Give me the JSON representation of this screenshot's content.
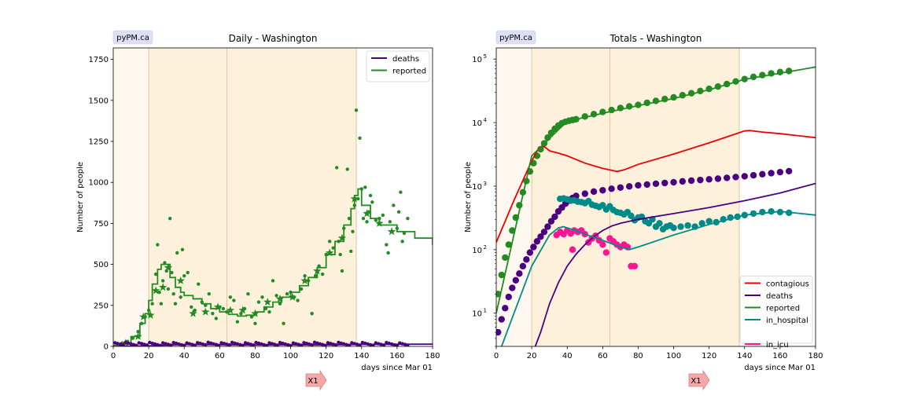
{
  "chart_data": [
    {
      "type": "line",
      "title": "Daily - Washington",
      "xlabel": "days since Mar 01",
      "ylabel": "Number of people",
      "xlim": [
        0,
        180
      ],
      "ylim": [
        0,
        1820
      ],
      "xticks": [
        0,
        20,
        40,
        60,
        80,
        100,
        120,
        140,
        160,
        180
      ],
      "yticks": [
        0,
        250,
        500,
        750,
        1000,
        1250,
        1500,
        1750
      ],
      "watermark": "pyPM.ca",
      "marker_label": "X1",
      "legend_position": "upper right",
      "intervals": [
        {
          "x0": 0,
          "x1": 20,
          "color": "#fdf3e7"
        },
        {
          "x0": 20,
          "x1": 64,
          "color": "#fdf0da"
        },
        {
          "x0": 64,
          "x1": 137,
          "color": "#fdf0da"
        }
      ],
      "series": [
        {
          "name": "deaths",
          "color": "#4b0082",
          "x": [
            0,
            20,
            40,
            60,
            80,
            100,
            120,
            140,
            160,
            180
          ],
          "values": [
            0,
            3,
            12,
            10,
            9,
            10,
            9,
            12,
            13,
            14
          ]
        },
        {
          "name": "reported",
          "color": "#228b22",
          "x": [
            0,
            5,
            10,
            15,
            18,
            20,
            22,
            25,
            27,
            30,
            32,
            35,
            38,
            40,
            45,
            50,
            55,
            60,
            65,
            70,
            75,
            80,
            85,
            90,
            95,
            100,
            105,
            110,
            115,
            120,
            125,
            130,
            134,
            136,
            138,
            140,
            145,
            150,
            160,
            170,
            180
          ],
          "values": [
            5,
            20,
            60,
            140,
            200,
            280,
            380,
            470,
            500,
            500,
            420,
            360,
            330,
            310,
            290,
            260,
            230,
            210,
            195,
            185,
            190,
            210,
            240,
            270,
            300,
            330,
            370,
            420,
            480,
            560,
            640,
            740,
            840,
            920,
            960,
            860,
            780,
            740,
            700,
            660,
            620
          ]
        }
      ],
      "scatter_points": {
        "color": "#228b22",
        "x": [
          2,
          5,
          8,
          11,
          14,
          16,
          18,
          20,
          22,
          24,
          25,
          26,
          27,
          28,
          29,
          30,
          31,
          32,
          33,
          34,
          35,
          36,
          38,
          39,
          40,
          42,
          44,
          46,
          48,
          50,
          52,
          54,
          56,
          58,
          60,
          62,
          64,
          66,
          68,
          70,
          72,
          74,
          76,
          78,
          80,
          82,
          84,
          86,
          88,
          90,
          92,
          94,
          96,
          98,
          100,
          102,
          104,
          106,
          108,
          110,
          112,
          114,
          116,
          118,
          120,
          122,
          124,
          126,
          127,
          128,
          129,
          130,
          132,
          133,
          134,
          135,
          136,
          137,
          138,
          139,
          140,
          141,
          142,
          143,
          144,
          145,
          146,
          148,
          150,
          152,
          154,
          155,
          156,
          158,
          160,
          161,
          162,
          163,
          164,
          166
        ],
        "values": [
          10,
          20,
          30,
          50,
          90,
          140,
          180,
          220,
          260,
          440,
          620,
          330,
          260,
          400,
          510,
          460,
          350,
          780,
          450,
          320,
          260,
          570,
          300,
          590,
          430,
          450,
          240,
          220,
          380,
          270,
          250,
          320,
          200,
          170,
          240,
          230,
          210,
          300,
          280,
          150,
          200,
          230,
          320,
          180,
          140,
          270,
          300,
          230,
          210,
          400,
          310,
          260,
          140,
          320,
          330,
          300,
          280,
          350,
          430,
          400,
          200,
          430,
          490,
          440,
          560,
          640,
          600,
          1090,
          640,
          560,
          460,
          720,
          1080,
          780,
          580,
          700,
          860,
          1440,
          900,
          1270,
          960,
          780,
          970,
          760,
          820,
          920,
          880,
          770,
          780,
          800,
          620,
          570,
          760,
          860,
          720,
          820,
          940,
          640,
          690,
          780
        ]
      },
      "star_points": {
        "color": "#228b22",
        "x": [
          7,
          14,
          17,
          21,
          24,
          28,
          31,
          38,
          45,
          52,
          59,
          66,
          73,
          80,
          87,
          94,
          101,
          108,
          115,
          122,
          129,
          136,
          143,
          150,
          157
        ],
        "values": [
          20,
          60,
          180,
          190,
          340,
          360,
          480,
          400,
          200,
          210,
          240,
          220,
          220,
          200,
          270,
          290,
          300,
          400,
          460,
          570,
          660,
          900,
          810,
          750,
          700
        ]
      }
    },
    {
      "type": "line",
      "title": "Totals - Washington",
      "xlabel": "days since Mar 01",
      "ylabel": "Number of people",
      "xlim": [
        0,
        180
      ],
      "yscale": "log",
      "ylim": [
        3,
        150000
      ],
      "xticks": [
        0,
        20,
        40,
        60,
        80,
        100,
        120,
        140,
        160,
        180
      ],
      "yticks": [
        10,
        100,
        1000,
        10000,
        100000
      ],
      "ytick_labels": [
        {
          "base": "10",
          "exp": "1"
        },
        {
          "base": "10",
          "exp": "2"
        },
        {
          "base": "10",
          "exp": "3"
        },
        {
          "base": "10",
          "exp": "4"
        },
        {
          "base": "10",
          "exp": "5"
        }
      ],
      "watermark": "pyPM.ca",
      "marker_label": "X1",
      "legend_position": "lower right",
      "intervals": [
        {
          "x0": 0,
          "x1": 20,
          "color": "#fdf3e7"
        },
        {
          "x0": 20,
          "x1": 64,
          "color": "#fdf0da"
        },
        {
          "x0": 64,
          "x1": 137,
          "color": "#fdf0da"
        }
      ],
      "series": [
        {
          "name": "contagious",
          "color": "#ee0000",
          "x": [
            0,
            10,
            20,
            24,
            26,
            28,
            30,
            35,
            40,
            50,
            60,
            68,
            72,
            80,
            100,
            120,
            140,
            143,
            150,
            160,
            180
          ],
          "values": [
            130,
            600,
            2500,
            4000,
            4300,
            4000,
            3600,
            3300,
            3000,
            2300,
            1900,
            1700,
            1800,
            2200,
            3200,
            4800,
            7400,
            7500,
            7100,
            6700,
            5800
          ]
        },
        {
          "name": "deaths",
          "color": "#4b0082",
          "x": [
            22,
            25,
            30,
            35,
            40,
            45,
            50,
            55,
            60,
            65,
            70,
            80,
            100,
            120,
            140,
            160,
            180
          ],
          "values": [
            3,
            5,
            14,
            30,
            55,
            85,
            120,
            160,
            200,
            235,
            260,
            300,
            370,
            460,
            590,
            780,
            1100
          ]
        },
        {
          "name": "reported",
          "color": "#228b22",
          "x": [
            0,
            20,
            40,
            60,
            80,
            100,
            120,
            140,
            160,
            180
          ],
          "values": [
            10,
            3000,
            10500,
            14000,
            18500,
            24000,
            33000,
            48000,
            60000,
            75000
          ]
        },
        {
          "name": "in_hospital",
          "color": "#008b8b",
          "x": [
            3,
            10,
            20,
            30,
            35,
            38,
            40,
            45,
            50,
            60,
            70,
            75,
            80,
            100,
            120,
            140,
            160,
            180
          ],
          "values": [
            3,
            10,
            55,
            170,
            220,
            230,
            220,
            200,
            175,
            140,
            110,
            100,
            110,
            170,
            250,
            350,
            400,
            350
          ]
        }
      ],
      "scatter_series": [
        {
          "name": "reported",
          "color": "#228b22",
          "x": [
            1,
            3,
            5,
            7,
            9,
            11,
            13,
            15,
            17,
            19,
            21,
            23,
            25,
            27,
            29,
            31,
            33,
            35,
            37,
            39,
            41,
            43,
            45,
            50,
            55,
            60,
            65,
            70,
            75,
            80,
            85,
            90,
            95,
            100,
            105,
            110,
            115,
            120,
            125,
            130,
            135,
            140,
            145,
            150,
            155,
            160,
            165
          ],
          "values": [
            20,
            40,
            75,
            120,
            200,
            320,
            500,
            800,
            1200,
            1700,
            2300,
            3000,
            3800,
            4700,
            5800,
            6900,
            8000,
            9000,
            9800,
            10300,
            10700,
            11000,
            11300,
            12500,
            13600,
            14700,
            15800,
            17000,
            18000,
            19000,
            20500,
            22000,
            23500,
            25000,
            27000,
            29000,
            31500,
            34000,
            37000,
            40500,
            44500,
            48500,
            52500,
            56000,
            59500,
            62500,
            65000
          ]
        },
        {
          "name": "deaths",
          "color": "#4b0082",
          "x": [
            1,
            3,
            5,
            7,
            9,
            11,
            13,
            15,
            17,
            19,
            21,
            23,
            25,
            27,
            29,
            31,
            33,
            35,
            37,
            39,
            41,
            43,
            45,
            50,
            55,
            60,
            65,
            70,
            75,
            80,
            85,
            90,
            95,
            100,
            105,
            110,
            115,
            120,
            125,
            130,
            135,
            140,
            145,
            150,
            155,
            160,
            165
          ],
          "values": [
            5,
            8,
            12,
            18,
            25,
            33,
            42,
            55,
            70,
            90,
            110,
            135,
            160,
            190,
            230,
            280,
            330,
            400,
            460,
            530,
            590,
            650,
            700,
            760,
            820,
            860,
            910,
            950,
            990,
            1030,
            1060,
            1090,
            1120,
            1150,
            1190,
            1220,
            1250,
            1280,
            1310,
            1350,
            1390,
            1430,
            1480,
            1540,
            1600,
            1660,
            1720
          ]
        },
        {
          "name": "in_hospital",
          "color": "#008b8b",
          "x": [
            36,
            38,
            40,
            42,
            44,
            46,
            48,
            50,
            52,
            54,
            56,
            58,
            60,
            62,
            64,
            66,
            68,
            70,
            72,
            74,
            76,
            78,
            80,
            82,
            84,
            86,
            88,
            90,
            92,
            94,
            96,
            98,
            100,
            104,
            108,
            112,
            116,
            120,
            124,
            128,
            132,
            136,
            140,
            145,
            150,
            155,
            160,
            165
          ],
          "values": [
            630,
            640,
            620,
            590,
            600,
            570,
            560,
            540,
            580,
            510,
            490,
            470,
            500,
            430,
            480,
            420,
            390,
            380,
            360,
            390,
            340,
            290,
            320,
            330,
            280,
            260,
            300,
            230,
            260,
            210,
            230,
            240,
            220,
            230,
            240,
            230,
            260,
            280,
            270,
            300,
            320,
            330,
            350,
            370,
            390,
            400,
            390,
            380
          ]
        },
        {
          "name": "in_icu",
          "color": "#ff1493",
          "x": [
            34,
            36,
            38,
            40,
            42,
            43,
            44,
            46,
            48,
            50,
            52,
            54,
            56,
            58,
            60,
            62,
            64,
            66,
            68,
            70,
            72,
            74,
            76,
            78
          ],
          "values": [
            170,
            190,
            175,
            200,
            180,
            100,
            200,
            190,
            200,
            175,
            130,
            150,
            165,
            140,
            120,
            90,
            150,
            135,
            120,
            110,
            120,
            110,
            55,
            55
          ]
        }
      ]
    }
  ]
}
